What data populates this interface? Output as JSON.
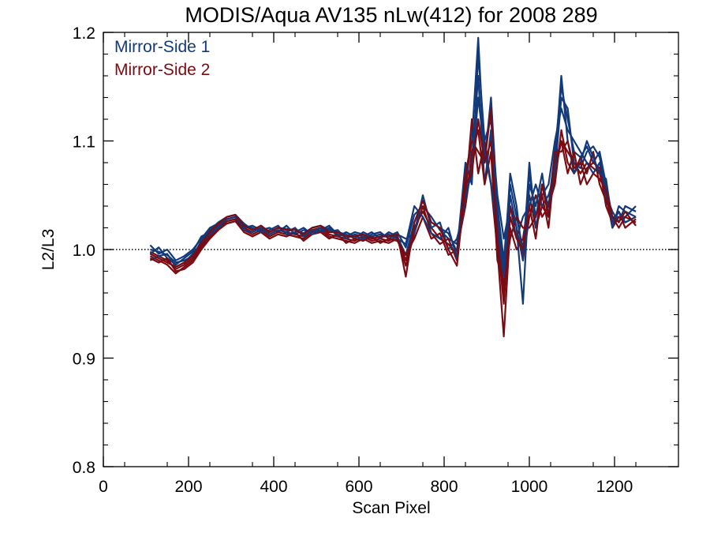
{
  "chart_data": {
    "type": "line",
    "title": "MODIS/Aqua AV135 nLw(412) for 2008 289",
    "xlabel": "Scan Pixel",
    "ylabel": "L2/L3",
    "xlim": [
      0,
      1350
    ],
    "ylim": [
      0.8,
      1.2
    ],
    "xticks": [
      0,
      200,
      400,
      600,
      800,
      1000,
      1200
    ],
    "xtick_labels": [
      "0",
      "200",
      "400",
      "600",
      "800",
      "1000",
      "1200"
    ],
    "yticks": [
      0.8,
      0.9,
      1.0,
      1.1,
      1.2
    ],
    "ytick_labels": [
      "0.8",
      "0.9",
      "1.0",
      "1.1",
      "1.2"
    ],
    "reference_line": {
      "y": 1.0,
      "style": "dotted"
    },
    "grid": false,
    "legend_position": "top-left",
    "colors": {
      "mirror_side_1": "#123a7a",
      "mirror_side_2": "#7a0b12",
      "reference": "#000000"
    },
    "x": [
      110,
      130,
      150,
      170,
      190,
      210,
      230,
      250,
      270,
      290,
      310,
      330,
      350,
      370,
      390,
      410,
      430,
      450,
      470,
      490,
      510,
      530,
      550,
      570,
      590,
      610,
      630,
      650,
      670,
      690,
      710,
      730,
      750,
      770,
      790,
      810,
      830,
      850,
      865,
      880,
      895,
      910,
      925,
      940,
      955,
      970,
      985,
      1000,
      1015,
      1030,
      1045,
      1060,
      1075,
      1090,
      1105,
      1120,
      1135,
      1150,
      1165,
      1180,
      1195,
      1210,
      1225,
      1250
    ],
    "series": [
      {
        "name": "Mirror-Side 1",
        "lines": [
          [
            1.0,
            0.998,
            0.995,
            0.988,
            0.99,
            0.994,
            1.008,
            1.018,
            1.025,
            1.03,
            1.032,
            1.024,
            1.018,
            1.022,
            1.016,
            1.02,
            1.019,
            1.018,
            1.015,
            1.02,
            1.022,
            1.018,
            1.016,
            1.014,
            1.01,
            1.016,
            1.012,
            1.014,
            1.012,
            1.016,
            1.002,
            1.032,
            1.04,
            1.03,
            1.018,
            1.01,
            1.005,
            1.06,
            1.1,
            1.195,
            1.08,
            1.14,
            1.04,
            0.99,
            1.06,
            1.03,
            1.0,
            1.07,
            1.03,
            1.06,
            1.04,
            1.09,
            1.15,
            1.12,
            1.09,
            1.085,
            1.095,
            1.08,
            1.09,
            1.06,
            1.03,
            1.03,
            1.03,
            1.04
          ],
          [
            0.996,
            1.002,
            0.992,
            0.986,
            0.992,
            0.998,
            1.012,
            1.016,
            1.022,
            1.026,
            1.028,
            1.02,
            1.022,
            1.018,
            1.02,
            1.016,
            1.022,
            1.014,
            1.018,
            1.016,
            1.02,
            1.016,
            1.018,
            1.01,
            1.014,
            1.012,
            1.016,
            1.01,
            1.016,
            1.012,
            0.995,
            1.025,
            1.045,
            1.025,
            1.02,
            1.015,
            0.998,
            1.08,
            1.06,
            1.18,
            1.1,
            1.12,
            1.05,
            1.01,
            1.04,
            1.01,
            1.03,
            1.04,
            1.06,
            1.04,
            1.05,
            1.07,
            1.14,
            1.13,
            1.08,
            1.075,
            1.09,
            1.095,
            1.085,
            1.055,
            1.02,
            1.04,
            1.035,
            1.03
          ],
          [
            0.99,
            0.994,
            0.996,
            0.984,
            0.988,
            0.996,
            1.006,
            1.014,
            1.02,
            1.024,
            1.026,
            1.018,
            1.016,
            1.02,
            1.014,
            1.018,
            1.016,
            1.02,
            1.012,
            1.018,
            1.016,
            1.02,
            1.012,
            1.016,
            1.012,
            1.01,
            1.014,
            1.016,
            1.01,
            1.014,
            1.01,
            1.015,
            1.05,
            1.02,
            1.025,
            1.0,
            1.01,
            1.04,
            1.08,
            1.16,
            1.06,
            1.11,
            1.03,
            0.98,
            1.07,
            1.04,
            0.99,
            1.08,
            1.02,
            1.05,
            1.06,
            1.1,
            1.13,
            1.11,
            1.1,
            1.09,
            1.08,
            1.07,
            1.08,
            1.05,
            1.035,
            1.025,
            1.04,
            1.035
          ],
          [
            1.004,
            0.996,
            1.0,
            0.99,
            0.994,
            1.0,
            1.01,
            1.02,
            1.024,
            1.028,
            1.03,
            1.022,
            1.02,
            1.016,
            1.018,
            1.022,
            1.014,
            1.016,
            1.02,
            1.014,
            1.018,
            1.022,
            1.014,
            1.012,
            1.016,
            1.014,
            1.01,
            1.012,
            1.014,
            1.01,
            1.005,
            1.04,
            1.03,
            1.015,
            1.01,
            1.02,
            0.992,
            1.05,
            1.07,
            1.14,
            1.09,
            1.06,
            1.02,
            0.975,
            1.05,
            1.02,
            0.95,
            1.06,
            1.04,
            1.07,
            1.03,
            1.08,
            1.16,
            1.1,
            1.07,
            1.08,
            1.1,
            1.085,
            1.07,
            1.065,
            1.025,
            1.035,
            1.025,
            1.03
          ]
        ]
      },
      {
        "name": "Mirror-Side 2",
        "lines": [
          [
            0.998,
            0.994,
            0.99,
            0.982,
            0.986,
            0.992,
            1.004,
            1.014,
            1.022,
            1.028,
            1.03,
            1.02,
            1.016,
            1.02,
            1.014,
            1.018,
            1.016,
            1.014,
            1.012,
            1.018,
            1.02,
            1.014,
            1.012,
            1.01,
            1.008,
            1.012,
            1.008,
            1.01,
            1.008,
            1.012,
            0.99,
            1.02,
            1.035,
            1.02,
            1.01,
            1.005,
            0.995,
            1.05,
            1.12,
            1.07,
            1.1,
            1.06,
            1.0,
            0.92,
            1.02,
            1.0,
            1.01,
            1.05,
            1.02,
            1.04,
            1.03,
            1.07,
            1.1,
            1.09,
            1.08,
            1.07,
            1.08,
            1.075,
            1.07,
            1.05,
            1.02,
            1.03,
            1.025,
            1.03
          ],
          [
            0.994,
            0.99,
            0.986,
            0.978,
            0.984,
            0.99,
            1.002,
            1.012,
            1.02,
            1.026,
            1.028,
            1.018,
            1.014,
            1.018,
            1.012,
            1.016,
            1.014,
            1.012,
            1.01,
            1.016,
            1.018,
            1.012,
            1.01,
            1.008,
            1.006,
            1.01,
            1.006,
            1.008,
            1.006,
            1.01,
            0.985,
            1.015,
            1.04,
            1.015,
            1.005,
            1.01,
            0.99,
            1.07,
            1.1,
            1.09,
            1.08,
            1.13,
            1.02,
            0.96,
            1.04,
            1.02,
            0.99,
            1.03,
            1.05,
            1.03,
            1.04,
            1.06,
            1.11,
            1.08,
            1.07,
            1.085,
            1.07,
            1.09,
            1.06,
            1.045,
            1.03,
            1.02,
            1.03,
            1.025
          ],
          [
            0.992,
            0.988,
            0.992,
            0.98,
            0.982,
            0.988,
            1.0,
            1.01,
            1.018,
            1.024,
            1.026,
            1.016,
            1.012,
            1.016,
            1.01,
            1.014,
            1.012,
            1.016,
            1.008,
            1.014,
            1.016,
            1.01,
            1.014,
            1.006,
            1.01,
            1.008,
            1.012,
            1.006,
            1.01,
            1.008,
            0.995,
            1.01,
            1.03,
            1.01,
            1.015,
            0.995,
            1.0,
            1.04,
            1.09,
            1.11,
            1.06,
            1.09,
            0.99,
            0.97,
            1.01,
            1.03,
            1.02,
            1.02,
            1.03,
            1.05,
            1.02,
            1.08,
            1.1,
            1.07,
            1.09,
            1.06,
            1.075,
            1.08,
            1.075,
            1.04,
            1.025,
            1.035,
            1.02,
            1.028
          ],
          [
            0.996,
            0.992,
            0.988,
            0.984,
            0.988,
            0.994,
            1.006,
            1.016,
            1.024,
            1.03,
            1.032,
            1.022,
            1.018,
            1.022,
            1.016,
            1.02,
            1.018,
            1.018,
            1.014,
            1.02,
            1.022,
            1.016,
            1.016,
            1.012,
            1.012,
            1.014,
            1.01,
            1.012,
            1.012,
            1.014,
            0.975,
            1.025,
            1.045,
            1.025,
            1.02,
            1.0,
            0.985,
            1.06,
            1.07,
            1.12,
            1.08,
            1.1,
            1.01,
            0.95,
            1.03,
            1.01,
            1.0,
            1.04,
            1.01,
            1.06,
            1.03,
            1.09,
            1.09,
            1.1,
            1.075,
            1.08,
            1.06,
            1.07,
            1.065,
            1.055,
            1.03,
            1.025,
            1.035,
            1.022
          ]
        ]
      }
    ]
  }
}
